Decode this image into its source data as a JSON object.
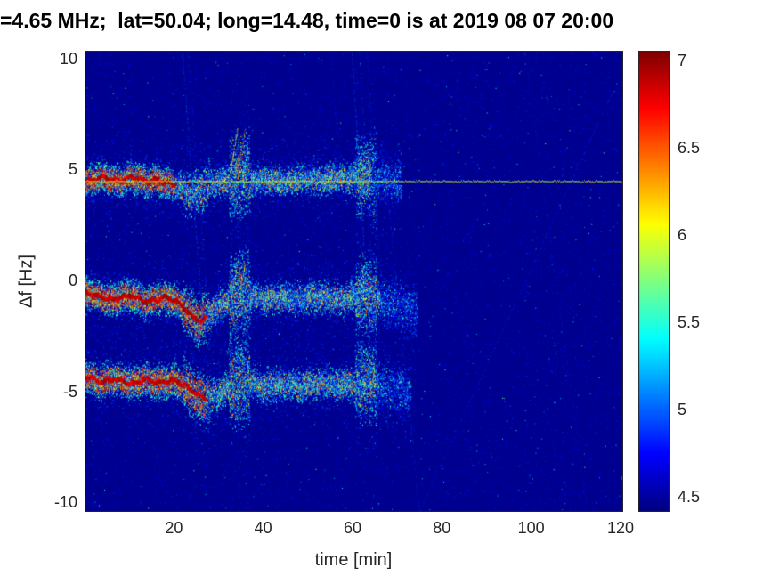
{
  "title": "=4.65 MHz;  lat=50.04; long=14.48, time=0 is at 2019 08 07 20:00",
  "chart_data": {
    "type": "heatmap",
    "subtype": "doppler-spectrogram",
    "xlabel": "time [min]",
    "ylabel": "Δf [Hz]",
    "xlim": [
      0,
      120.6
    ],
    "ylim": [
      -10.4,
      10.4
    ],
    "xticks": [
      20,
      40,
      60,
      80,
      100,
      120
    ],
    "yticks": [
      10,
      5,
      0,
      -5,
      -10
    ],
    "grid": false,
    "colorbar": {
      "colormap": "jet",
      "range": [
        4.42,
        7.06
      ],
      "ticks": [
        7,
        6.5,
        6,
        5.5,
        5,
        4.5
      ],
      "position": "right"
    },
    "background_value": 4.46,
    "persistent_line": {
      "f": 4.52,
      "t_start": 0,
      "t_end": 120.6,
      "value": 5.95
    },
    "bands": [
      {
        "name": "upper-doppler-trace",
        "sigma": 0.3,
        "core_end": 20,
        "fade_start": 64,
        "end": 71,
        "waypoints": [
          [
            0,
            4.5
          ],
          [
            2,
            4.62
          ],
          [
            4,
            4.72
          ],
          [
            6,
            4.6
          ],
          [
            8,
            4.52
          ],
          [
            10,
            4.72
          ],
          [
            12,
            4.66
          ],
          [
            14,
            4.5
          ],
          [
            16,
            4.6
          ],
          [
            18,
            4.48
          ],
          [
            20,
            4.38
          ],
          [
            22,
            4.15
          ],
          [
            24,
            3.95
          ],
          [
            26,
            4.15
          ],
          [
            28,
            4.4
          ],
          [
            30,
            4.5
          ],
          [
            32,
            4.55
          ],
          [
            34,
            4.68
          ],
          [
            36,
            4.72
          ],
          [
            38,
            4.58
          ],
          [
            40,
            4.6
          ],
          [
            44,
            4.52
          ],
          [
            48,
            4.6
          ],
          [
            52,
            4.58
          ],
          [
            56,
            4.68
          ],
          [
            60,
            4.66
          ],
          [
            64,
            4.76
          ],
          [
            67,
            4.6
          ],
          [
            71,
            4.5
          ]
        ],
        "hot_patches": [
          [
            31,
            36
          ],
          [
            41,
            47
          ],
          [
            54,
            58
          ],
          [
            61,
            65
          ]
        ]
      },
      {
        "name": "middle-doppler-trace",
        "sigma": 0.32,
        "core_end": 27,
        "fade_start": 66,
        "end": 74.5,
        "waypoints": [
          [
            0,
            -0.5
          ],
          [
            2,
            -0.6
          ],
          [
            4,
            -0.72
          ],
          [
            6,
            -0.82
          ],
          [
            8,
            -0.7
          ],
          [
            10,
            -0.6
          ],
          [
            12,
            -0.78
          ],
          [
            14,
            -0.92
          ],
          [
            16,
            -0.8
          ],
          [
            18,
            -0.7
          ],
          [
            20,
            -0.82
          ],
          [
            22,
            -1.15
          ],
          [
            24,
            -1.6
          ],
          [
            26,
            -1.78
          ],
          [
            28,
            -1.45
          ],
          [
            30,
            -1.05
          ],
          [
            32,
            -0.85
          ],
          [
            34,
            -0.6
          ],
          [
            36,
            -0.52
          ],
          [
            38,
            -0.7
          ],
          [
            40,
            -0.8
          ],
          [
            44,
            -0.72
          ],
          [
            48,
            -0.8
          ],
          [
            52,
            -0.7
          ],
          [
            56,
            -0.78
          ],
          [
            60,
            -0.7
          ],
          [
            62,
            -0.6
          ],
          [
            64,
            -0.66
          ],
          [
            66,
            -0.8
          ],
          [
            68,
            -0.95
          ],
          [
            70,
            -1.1
          ],
          [
            72,
            -1.2
          ],
          [
            74.5,
            -1.3
          ]
        ],
        "hot_patches": [
          [
            31,
            37
          ],
          [
            39,
            45
          ],
          [
            50,
            53
          ],
          [
            56,
            60
          ],
          [
            62,
            66
          ]
        ]
      },
      {
        "name": "lower-doppler-trace",
        "sigma": 0.34,
        "core_end": 27,
        "fade_start": 65,
        "end": 73,
        "waypoints": [
          [
            0,
            -4.3
          ],
          [
            2,
            -4.42
          ],
          [
            4,
            -4.52
          ],
          [
            6,
            -4.36
          ],
          [
            8,
            -4.46
          ],
          [
            10,
            -4.62
          ],
          [
            12,
            -4.5
          ],
          [
            14,
            -4.4
          ],
          [
            16,
            -4.56
          ],
          [
            18,
            -4.5
          ],
          [
            20,
            -4.46
          ],
          [
            22,
            -4.62
          ],
          [
            24,
            -4.92
          ],
          [
            26,
            -5.22
          ],
          [
            28,
            -5.28
          ],
          [
            30,
            -5.02
          ],
          [
            32,
            -4.82
          ],
          [
            34,
            -4.6
          ],
          [
            36,
            -4.5
          ],
          [
            38,
            -4.62
          ],
          [
            40,
            -4.72
          ],
          [
            44,
            -4.6
          ],
          [
            48,
            -4.7
          ],
          [
            52,
            -4.56
          ],
          [
            56,
            -4.7
          ],
          [
            60,
            -4.6
          ],
          [
            64,
            -4.6
          ],
          [
            66,
            -4.72
          ],
          [
            68,
            -4.82
          ],
          [
            70,
            -4.92
          ],
          [
            73,
            -5.05
          ]
        ],
        "hot_patches": [
          [
            30,
            36
          ],
          [
            38,
            44
          ],
          [
            47,
            52
          ],
          [
            57,
            60
          ],
          [
            62,
            66
          ]
        ]
      }
    ],
    "spread_events": [
      {
        "t0": 32.4,
        "t1": 37.0,
        "mult": 2.6
      },
      {
        "t0": 60.5,
        "t1": 65.5,
        "mult": 2.2
      },
      {
        "t0": 22.0,
        "t1": 28.0,
        "mult": 1.5
      }
    ],
    "streaks": [
      [
        21.8,
        10.4,
        26.5,
        -2.0,
        4.95,
        0.7,
        0.5
      ],
      [
        23.0,
        10.4,
        27.5,
        -1.0,
        4.85,
        0.6,
        0.4
      ],
      [
        32.6,
        4.9,
        34.2,
        6.9,
        6.0,
        0.9,
        0.75
      ],
      [
        34.0,
        4.7,
        35.8,
        6.8,
        6.4,
        0.9,
        0.75
      ],
      [
        35.2,
        4.6,
        36.6,
        6.0,
        5.6,
        0.8,
        0.7
      ],
      [
        32.8,
        -0.8,
        34.3,
        0.9,
        5.9,
        0.8,
        0.7
      ],
      [
        34.3,
        -0.9,
        35.7,
        0.6,
        6.2,
        0.8,
        0.7
      ],
      [
        31.8,
        -3.3,
        33.2,
        -2.1,
        5.4,
        0.7,
        0.6
      ],
      [
        32.2,
        -4.1,
        33.2,
        -3.5,
        6.8,
        0.9,
        0.8
      ],
      [
        55.0,
        10.4,
        57.5,
        4.8,
        4.8,
        0.5,
        0.35
      ],
      [
        59.8,
        10.4,
        63.8,
        -2.8,
        5.0,
        0.6,
        0.45
      ],
      [
        61.6,
        10.4,
        65.2,
        -3.4,
        4.9,
        0.55,
        0.4
      ],
      [
        63.2,
        10.4,
        66.6,
        -1.2,
        4.85,
        0.5,
        0.35
      ],
      [
        66.5,
        6.5,
        74.9,
        -10.4,
        4.9,
        0.6,
        0.45
      ],
      [
        74.9,
        -10.4,
        118.0,
        8.5,
        4.85,
        0.55,
        0.4
      ],
      [
        98.5,
        10.4,
        112.5,
        -10.4,
        4.8,
        0.5,
        0.35
      ],
      [
        101.0,
        -3.6,
        120.6,
        -4.9,
        4.75,
        0.45,
        0.3
      ]
    ]
  }
}
